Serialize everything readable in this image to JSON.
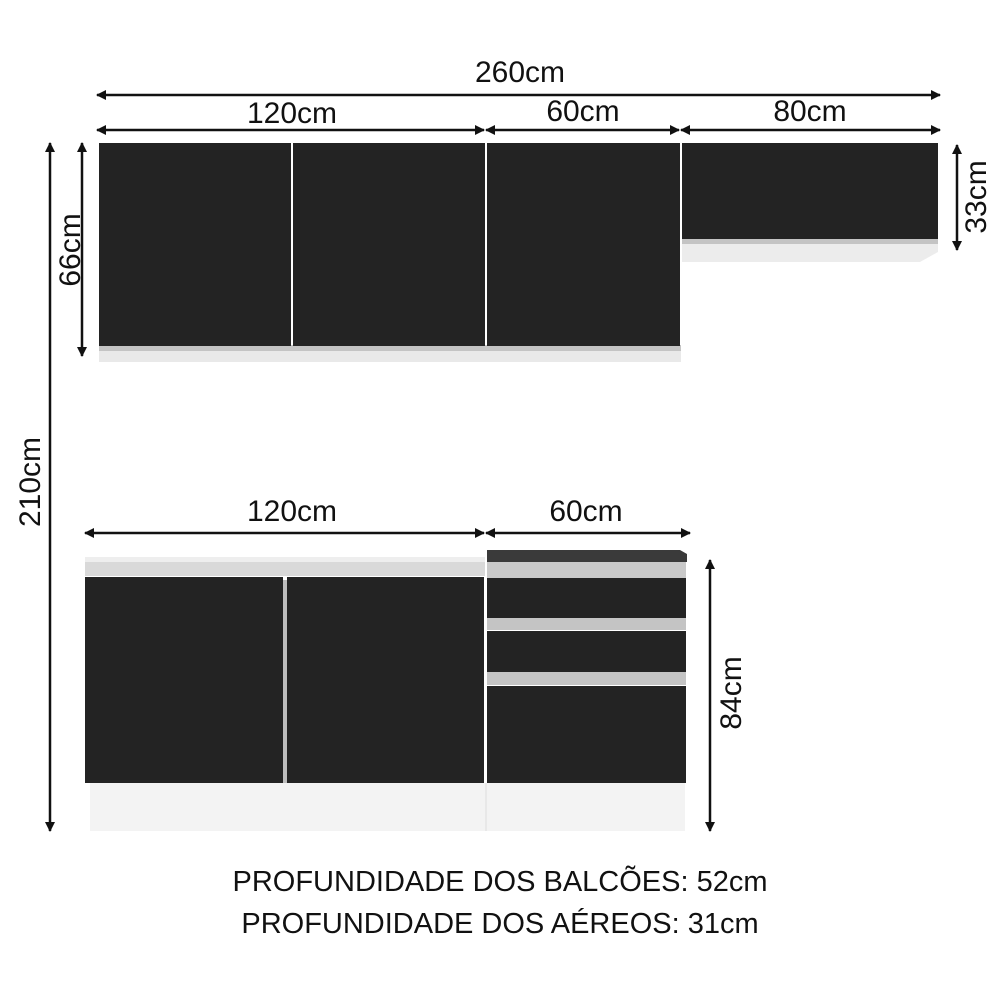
{
  "dimensions": {
    "total_width": "260cm",
    "upper_left_width": "120cm",
    "upper_middle_width": "60cm",
    "upper_right_width": "80cm",
    "upper_height": "66cm",
    "upper_right_height": "33cm",
    "total_height": "210cm",
    "lower_left_width": "120cm",
    "lower_right_width": "60cm",
    "lower_height": "84cm"
  },
  "notes": {
    "base_depth": "PROFUNDIDADE DOS BALCÕES: 52cm",
    "wall_depth": "PROFUNDIDADE DOS AÉREOS: 31cm"
  },
  "colors": {
    "cabinet_front": "#232323",
    "trim": "#c8c8c8",
    "body": "#f2f2f2",
    "cooktop": "#3a3a3a"
  }
}
